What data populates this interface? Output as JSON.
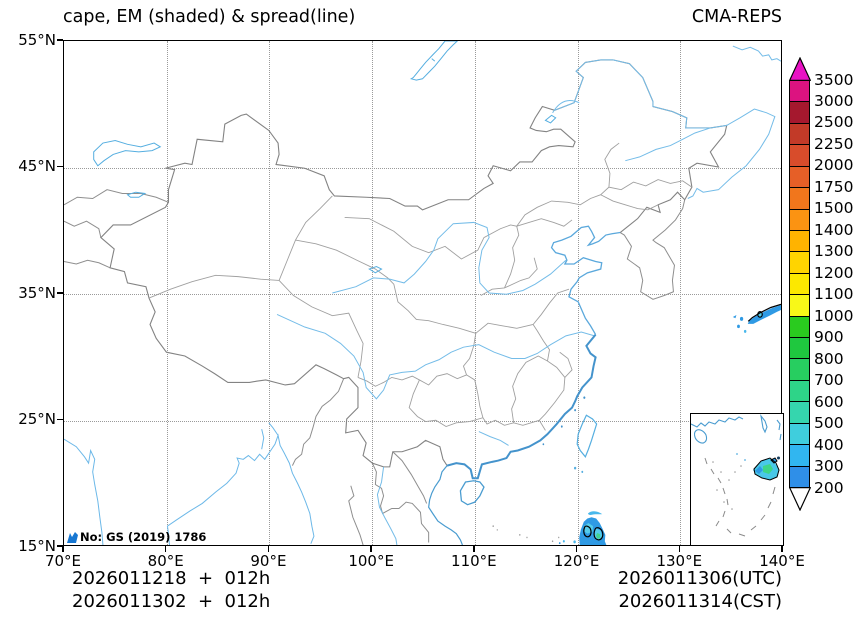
{
  "title": "cape, EM (shaded) & spread(line)",
  "source_label": "CMA-REPS",
  "axes": {
    "x": {
      "ticks": [
        "70°E",
        "80°E",
        "90°E",
        "100°E",
        "110°E",
        "120°E",
        "130°E",
        "140°E"
      ]
    },
    "y": {
      "ticks": [
        "55°N",
        "45°N",
        "35°N",
        "25°N",
        "15°N"
      ]
    }
  },
  "colorbar": {
    "levels": [
      200,
      300,
      400,
      500,
      600,
      700,
      800,
      900,
      1000,
      1100,
      1200,
      1300,
      1400,
      1500,
      1750,
      2000,
      2250,
      2500,
      3000,
      3500
    ],
    "colors": [
      "#2F8FE8",
      "#31B6F0",
      "#3FCEDD",
      "#35D6AE",
      "#2ED488",
      "#27CE60",
      "#1FC83F",
      "#2ACB1F",
      "#F8F818",
      "#FCE800",
      "#FFD400",
      "#FFB300",
      "#FB9312",
      "#F1761C",
      "#E65F27",
      "#D84C2B",
      "#C23A28",
      "#A5182E",
      "#DC1380"
    ],
    "over_color": "#E912C4",
    "under_color": "#FFFFFF"
  },
  "footer": {
    "left_line1": "2026011218  +  012h",
    "left_line2": "2026011302  +  012h",
    "right_line1": "2026011306(UTC)",
    "right_line2": "2026011314(CST)"
  },
  "watermark": "No: GS (2019) 1786",
  "chart_data": {
    "type": "heatmap",
    "title": "cape, EM (shaded) & spread(line)",
    "model": "CMA-REPS",
    "variable": "cape (shaded ensemble mean), spread (line contours)",
    "x_axis": {
      "units": "degrees east",
      "range": [
        70,
        140
      ],
      "ticks": [
        70,
        80,
        90,
        100,
        110,
        120,
        130,
        140
      ]
    },
    "y_axis": {
      "units": "degrees north",
      "range": [
        15,
        55
      ],
      "ticks": [
        15,
        25,
        35,
        45,
        55
      ]
    },
    "grid": "dotted",
    "legend_position": "right-colorbar",
    "colorbar_levels": [
      200,
      300,
      400,
      500,
      600,
      700,
      800,
      900,
      1000,
      1100,
      1200,
      1300,
      1400,
      1500,
      1750,
      2000,
      2250,
      2500,
      3000,
      3500
    ],
    "colorbar_colors": [
      "#2F8FE8",
      "#31B6F0",
      "#3FCEDD",
      "#35D6AE",
      "#2ED488",
      "#27CE60",
      "#1FC83F",
      "#2ACB1F",
      "#F8F818",
      "#FCE800",
      "#FFD400",
      "#FFB300",
      "#FB9312",
      "#F1761C",
      "#E65F27",
      "#D84C2B",
      "#C23A28",
      "#A5182E",
      "#DC1380"
    ],
    "init_time_labels": [
      "2026011218  +  012h",
      "2026011302  +  012h"
    ],
    "valid_time_labels": [
      "2026011306(UTC)",
      "2026011314(CST)"
    ],
    "shaded_features": [
      {
        "name": "luzon-northern-philippines",
        "center_lon": 121.7,
        "center_lat": 16.0,
        "cape_range": [
          200,
          700
        ],
        "has_spread_contours": true
      },
      {
        "name": "south-of-honshu-japan",
        "center_lon": 138.2,
        "center_lat": 33.3,
        "cape_range": [
          200,
          500
        ],
        "has_spread_contours": true
      },
      {
        "name": "south-china-sea-inset-patch",
        "center_lon": 118.0,
        "center_lat": 11.0,
        "cape_range": [
          200,
          900
        ],
        "has_spread_contours": true
      }
    ]
  }
}
